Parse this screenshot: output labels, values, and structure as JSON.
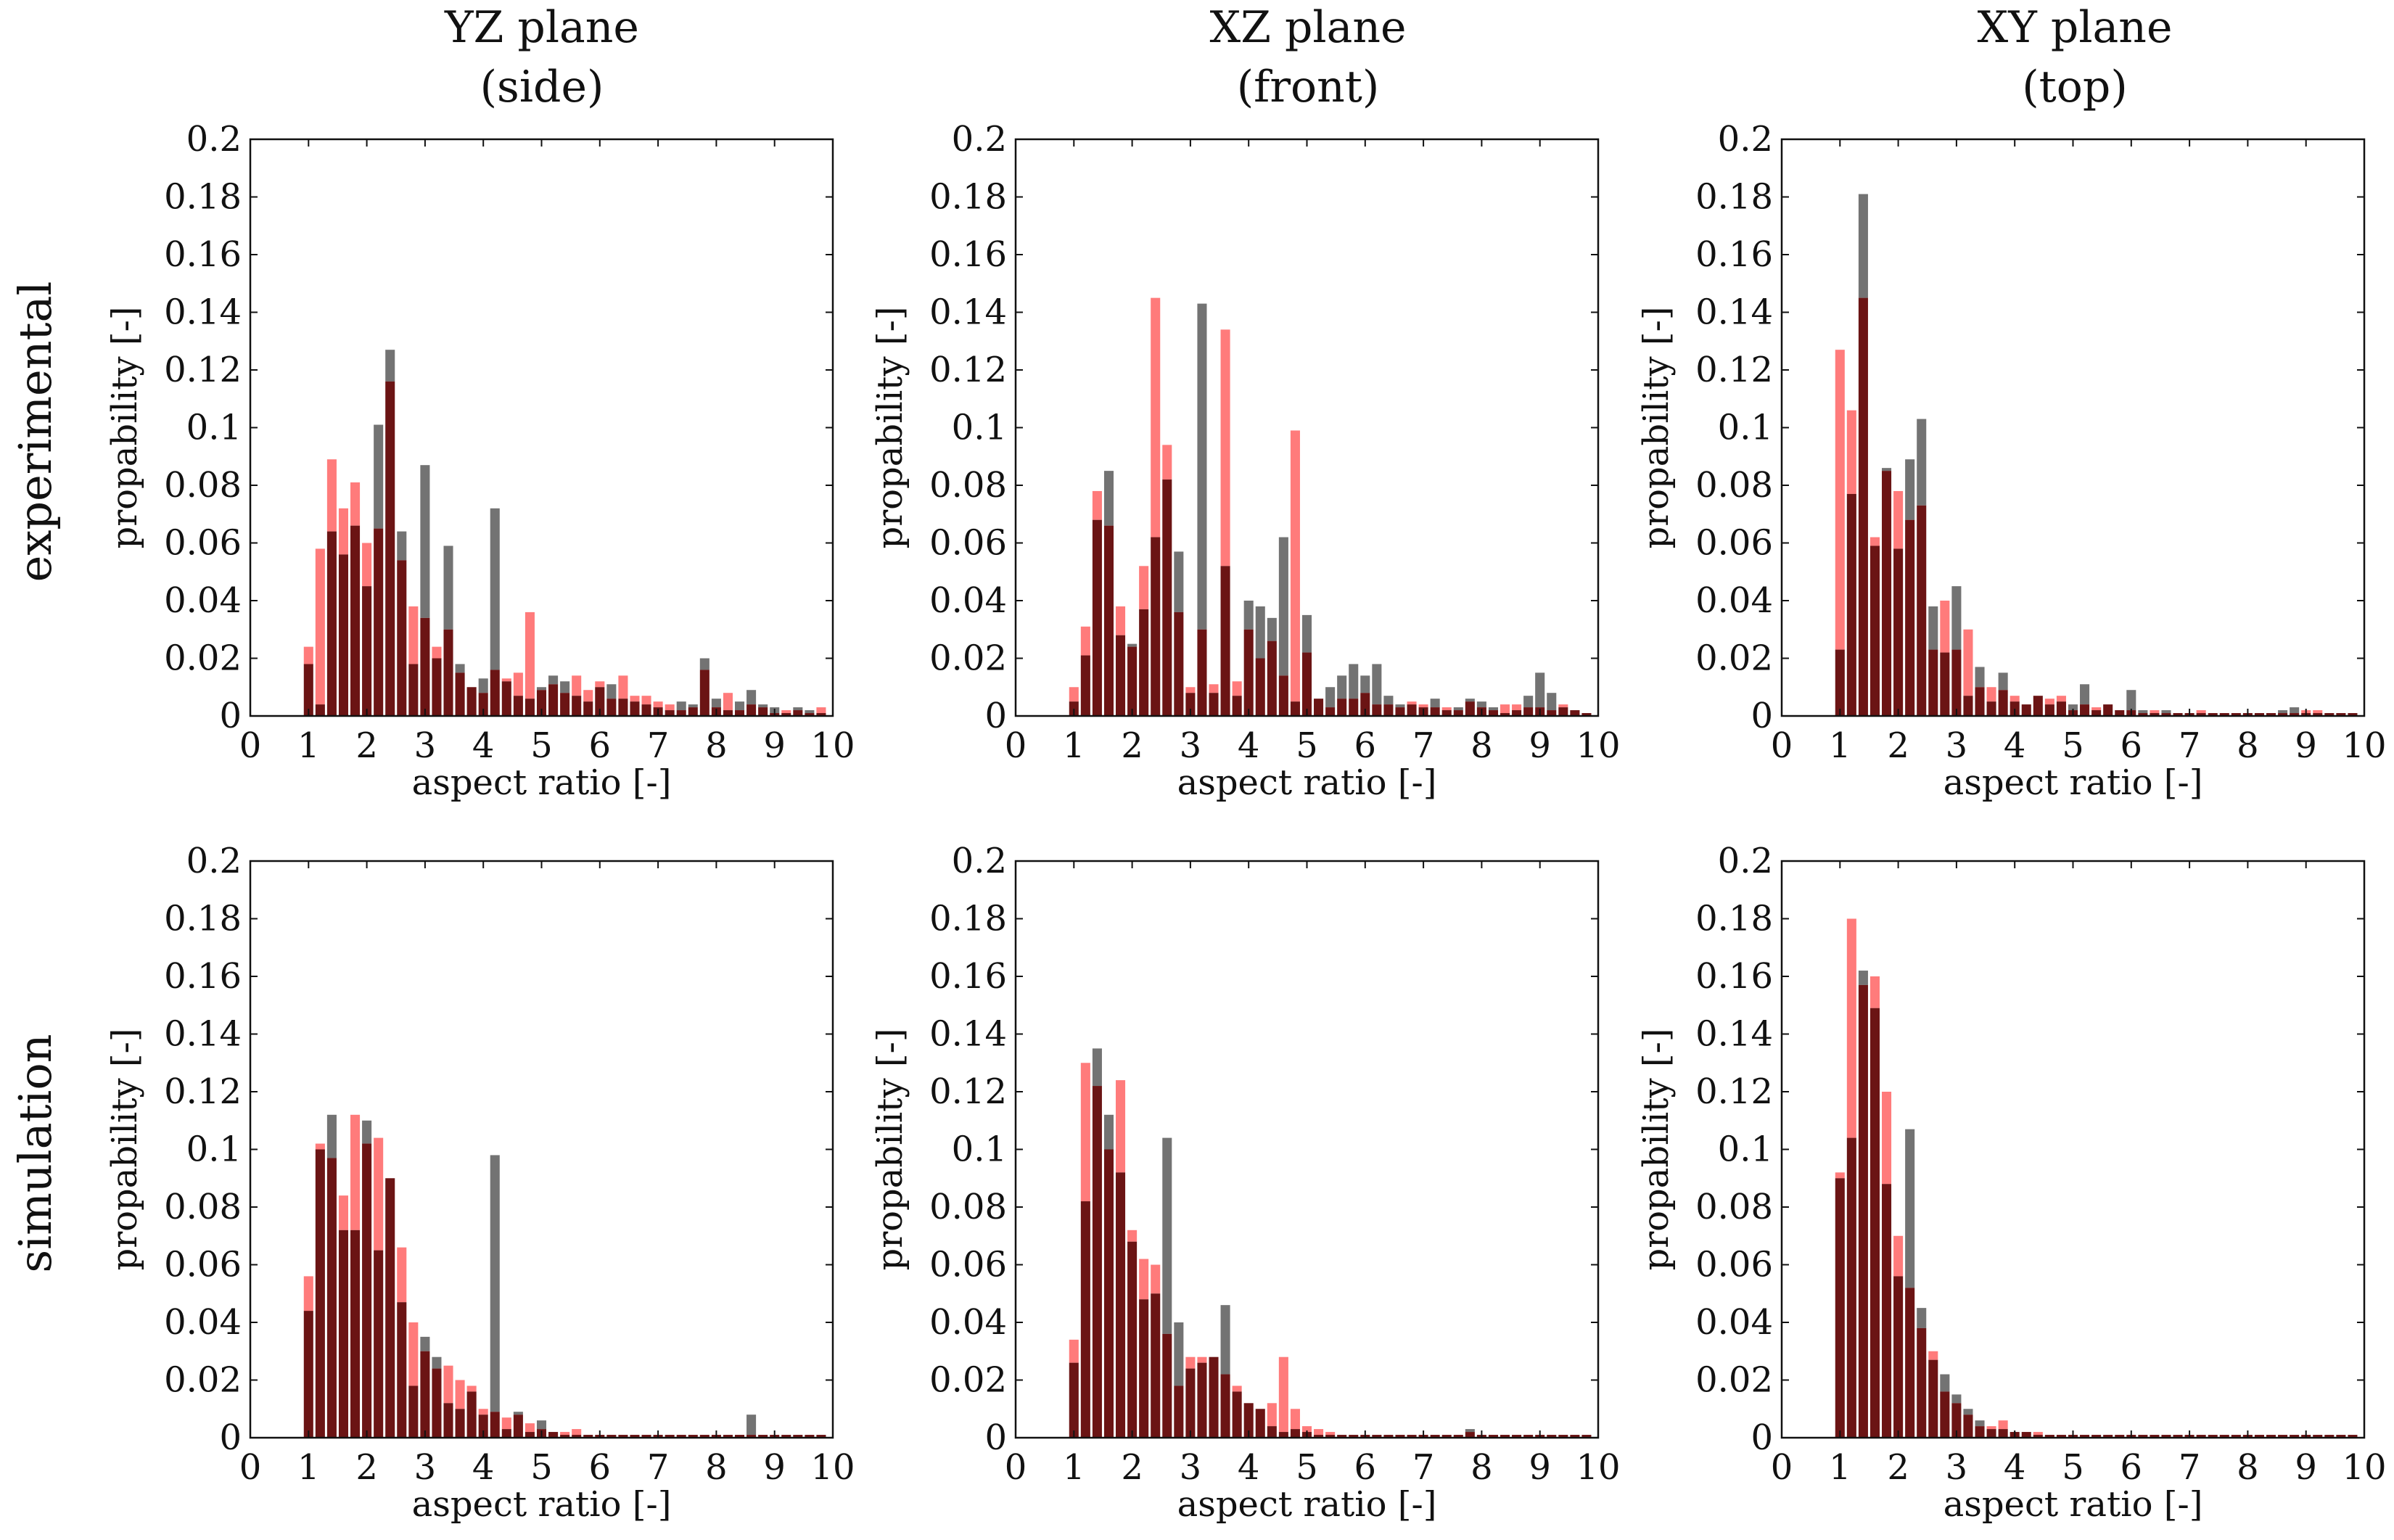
{
  "figure": {
    "column_titles": [
      {
        "line1": "YZ plane",
        "line2": "(side)"
      },
      {
        "line1": "XZ plane",
        "line2": "(front)"
      },
      {
        "line1": "XY plane",
        "line2": "(top)"
      }
    ],
    "row_labels": [
      "experimental",
      "simulation"
    ],
    "colors": {
      "series_a": "#ff5a5a",
      "series_b": "#505050",
      "overlap": "#6b1414",
      "axis": "#111111"
    }
  },
  "chart_data": [
    {
      "type": "bar",
      "row": "experimental",
      "plane": "YZ plane (side)",
      "xlabel": "aspect ratio [-]",
      "ylabel": "propability [-]",
      "xlim": [
        0,
        10
      ],
      "ylim": [
        0,
        0.2
      ],
      "xticks": [
        0,
        1,
        2,
        3,
        4,
        5,
        6,
        7,
        8,
        9,
        10
      ],
      "yticks": [
        0,
        0.02,
        0.04,
        0.06,
        0.08,
        0.1,
        0.12,
        0.14,
        0.16,
        0.18,
        0.2
      ],
      "bin_start": 0.9,
      "bin_width": 0.2,
      "series": [
        {
          "name": "red",
          "values": [
            0.024,
            0.058,
            0.089,
            0.072,
            0.081,
            0.06,
            0.065,
            0.116,
            0.054,
            0.038,
            0.034,
            0.024,
            0.03,
            0.015,
            0.01,
            0.008,
            0.016,
            0.013,
            0.015,
            0.036,
            0.009,
            0.011,
            0.008,
            0.014,
            0.009,
            0.012,
            0.006,
            0.014,
            0.007,
            0.007,
            0.005,
            0.004,
            0.002,
            0.003,
            0.016,
            0.003,
            0.008,
            0.002,
            0.004,
            0.003,
            0.001,
            0.002,
            0.002,
            0.001,
            0.003
          ]
        },
        {
          "name": "gray",
          "values": [
            0.018,
            0.004,
            0.064,
            0.056,
            0.066,
            0.045,
            0.101,
            0.127,
            0.064,
            0.018,
            0.087,
            0.02,
            0.059,
            0.018,
            0.01,
            0.013,
            0.072,
            0.012,
            0.007,
            0.006,
            0.01,
            0.014,
            0.012,
            0.007,
            0.005,
            0.01,
            0.011,
            0.006,
            0.005,
            0.004,
            0.003,
            0.002,
            0.005,
            0.004,
            0.02,
            0.006,
            0.002,
            0.005,
            0.009,
            0.004,
            0.003,
            0.001,
            0.003,
            0.002,
            0.001
          ]
        }
      ]
    },
    {
      "type": "bar",
      "row": "experimental",
      "plane": "XZ plane (front)",
      "xlabel": "aspect ratio [-]",
      "ylabel": "propability [-]",
      "xlim": [
        0,
        10
      ],
      "ylim": [
        0,
        0.2
      ],
      "xticks": [
        0,
        1,
        2,
        3,
        4,
        5,
        6,
        7,
        8,
        9,
        10
      ],
      "yticks": [
        0,
        0.02,
        0.04,
        0.06,
        0.08,
        0.1,
        0.12,
        0.14,
        0.16,
        0.18,
        0.2
      ],
      "bin_start": 0.9,
      "bin_width": 0.2,
      "series": [
        {
          "name": "red",
          "values": [
            0.01,
            0.031,
            0.078,
            0.066,
            0.038,
            0.024,
            0.052,
            0.145,
            0.094,
            0.036,
            0.01,
            0.03,
            0.011,
            0.134,
            0.012,
            0.03,
            0.02,
            0.026,
            0.014,
            0.099,
            0.022,
            0.006,
            0.003,
            0.006,
            0.006,
            0.008,
            0.004,
            0.004,
            0.003,
            0.005,
            0.004,
            0.003,
            0.003,
            0.002,
            0.005,
            0.003,
            0.002,
            0.004,
            0.004,
            0.003,
            0.003,
            0.002,
            0.004,
            0.002,
            0.001
          ]
        },
        {
          "name": "gray",
          "values": [
            0.005,
            0.021,
            0.068,
            0.085,
            0.028,
            0.025,
            0.037,
            0.062,
            0.082,
            0.057,
            0.008,
            0.143,
            0.008,
            0.052,
            0.007,
            0.04,
            0.038,
            0.034,
            0.062,
            0.005,
            0.035,
            0.006,
            0.01,
            0.014,
            0.018,
            0.014,
            0.018,
            0.007,
            0.004,
            0.004,
            0.003,
            0.006,
            0.002,
            0.003,
            0.006,
            0.005,
            0.003,
            0.001,
            0.002,
            0.007,
            0.015,
            0.008,
            0.003,
            0.002,
            0.001
          ]
        }
      ]
    },
    {
      "type": "bar",
      "row": "experimental",
      "plane": "XY plane (top)",
      "xlabel": "aspect ratio [-]",
      "ylabel": "propability [-]",
      "xlim": [
        0,
        10
      ],
      "ylim": [
        0,
        0.2
      ],
      "xticks": [
        0,
        1,
        2,
        3,
        4,
        5,
        6,
        7,
        8,
        9,
        10
      ],
      "yticks": [
        0,
        0.02,
        0.04,
        0.06,
        0.08,
        0.1,
        0.12,
        0.14,
        0.16,
        0.18,
        0.2
      ],
      "bin_start": 0.9,
      "bin_width": 0.2,
      "series": [
        {
          "name": "red",
          "values": [
            0.127,
            0.106,
            0.145,
            0.062,
            0.085,
            0.078,
            0.068,
            0.073,
            0.023,
            0.04,
            0.023,
            0.03,
            0.01,
            0.01,
            0.009,
            0.007,
            0.004,
            0.007,
            0.006,
            0.007,
            0.002,
            0.004,
            0.003,
            0.004,
            0.002,
            0.002,
            0.001,
            0.002,
            0.001,
            0.001,
            0.001,
            0.002,
            0.001,
            0.001,
            0.001,
            0.001,
            0.001,
            0.001,
            0.001,
            0.001,
            0.002,
            0.002,
            0.001,
            0.001,
            0.001
          ]
        },
        {
          "name": "gray",
          "values": [
            0.023,
            0.077,
            0.181,
            0.059,
            0.086,
            0.058,
            0.089,
            0.103,
            0.038,
            0.022,
            0.045,
            0.007,
            0.017,
            0.005,
            0.015,
            0.005,
            0.004,
            0.007,
            0.004,
            0.005,
            0.004,
            0.011,
            0.002,
            0.004,
            0.002,
            0.009,
            0.002,
            0.001,
            0.002,
            0.001,
            0.001,
            0.001,
            0.001,
            0.001,
            0.001,
            0.001,
            0.001,
            0.001,
            0.002,
            0.003,
            0.001,
            0.001,
            0.001,
            0.001,
            0.001
          ]
        }
      ]
    },
    {
      "type": "bar",
      "row": "simulation",
      "plane": "YZ plane (side)",
      "xlabel": "aspect ratio [-]",
      "ylabel": "propability [-]",
      "xlim": [
        0,
        10
      ],
      "ylim": [
        0,
        0.2
      ],
      "xticks": [
        0,
        1,
        2,
        3,
        4,
        5,
        6,
        7,
        8,
        9,
        10
      ],
      "yticks": [
        0,
        0.02,
        0.04,
        0.06,
        0.08,
        0.1,
        0.12,
        0.14,
        0.16,
        0.18,
        0.2
      ],
      "bin_start": 0.9,
      "bin_width": 0.2,
      "series": [
        {
          "name": "red",
          "values": [
            0.056,
            0.102,
            0.097,
            0.084,
            0.112,
            0.102,
            0.104,
            0.09,
            0.066,
            0.04,
            0.03,
            0.024,
            0.025,
            0.02,
            0.018,
            0.01,
            0.009,
            0.007,
            0.008,
            0.005,
            0.003,
            0.002,
            0.002,
            0.003,
            0.001,
            0.001,
            0.001,
            0.001,
            0.001,
            0.001,
            0.001,
            0.001,
            0.001,
            0.001,
            0.001,
            0.001,
            0.001,
            0.001,
            0.001,
            0.001,
            0.001,
            0.001,
            0.001,
            0.001,
            0.001
          ]
        },
        {
          "name": "gray",
          "values": [
            0.044,
            0.1,
            0.112,
            0.072,
            0.072,
            0.11,
            0.065,
            0.09,
            0.047,
            0.018,
            0.035,
            0.028,
            0.012,
            0.01,
            0.016,
            0.008,
            0.098,
            0.003,
            0.009,
            0.002,
            0.006,
            0.002,
            0.001,
            0.001,
            0.001,
            0.001,
            0.001,
            0.001,
            0.001,
            0.001,
            0.001,
            0.001,
            0.001,
            0.001,
            0.001,
            0.001,
            0.001,
            0.001,
            0.008,
            0.001,
            0.001,
            0.001,
            0.001,
            0.001,
            0.001
          ]
        }
      ]
    },
    {
      "type": "bar",
      "row": "simulation",
      "plane": "XZ plane (front)",
      "xlabel": "aspect ratio [-]",
      "ylabel": "propability [-]",
      "xlim": [
        0,
        10
      ],
      "ylim": [
        0,
        0.2
      ],
      "xticks": [
        0,
        1,
        2,
        3,
        4,
        5,
        6,
        7,
        8,
        9,
        10
      ],
      "yticks": [
        0,
        0.02,
        0.04,
        0.06,
        0.08,
        0.1,
        0.12,
        0.14,
        0.16,
        0.18,
        0.2
      ],
      "bin_start": 0.9,
      "bin_width": 0.2,
      "series": [
        {
          "name": "red",
          "values": [
            0.034,
            0.13,
            0.122,
            0.1,
            0.124,
            0.072,
            0.062,
            0.06,
            0.036,
            0.018,
            0.028,
            0.028,
            0.028,
            0.022,
            0.018,
            0.012,
            0.01,
            0.012,
            0.028,
            0.01,
            0.004,
            0.003,
            0.002,
            0.001,
            0.001,
            0.001,
            0.001,
            0.001,
            0.001,
            0.001,
            0.001,
            0.001,
            0.001,
            0.001,
            0.002,
            0.001,
            0.001,
            0.001,
            0.001,
            0.001,
            0.001,
            0.001,
            0.001,
            0.001,
            0.001
          ]
        },
        {
          "name": "gray",
          "values": [
            0.026,
            0.082,
            0.135,
            0.112,
            0.092,
            0.068,
            0.048,
            0.05,
            0.104,
            0.04,
            0.024,
            0.026,
            0.028,
            0.046,
            0.016,
            0.012,
            0.01,
            0.004,
            0.002,
            0.003,
            0.002,
            0.001,
            0.001,
            0.001,
            0.001,
            0.001,
            0.001,
            0.001,
            0.001,
            0.001,
            0.001,
            0.001,
            0.001,
            0.001,
            0.003,
            0.001,
            0.001,
            0.001,
            0.001,
            0.001,
            0.001,
            0.001,
            0.001,
            0.001,
            0.001
          ]
        }
      ]
    },
    {
      "type": "bar",
      "row": "simulation",
      "plane": "XY plane (top)",
      "xlabel": "aspect ratio [-]",
      "ylabel": "propability [-]",
      "xlim": [
        0,
        10
      ],
      "ylim": [
        0,
        0.2
      ],
      "xticks": [
        0,
        1,
        2,
        3,
        4,
        5,
        6,
        7,
        8,
        9,
        10
      ],
      "yticks": [
        0,
        0.02,
        0.04,
        0.06,
        0.08,
        0.1,
        0.12,
        0.14,
        0.16,
        0.18,
        0.2
      ],
      "bin_start": 0.9,
      "bin_width": 0.2,
      "series": [
        {
          "name": "red",
          "values": [
            0.092,
            0.18,
            0.157,
            0.16,
            0.12,
            0.07,
            0.052,
            0.038,
            0.03,
            0.016,
            0.012,
            0.008,
            0.004,
            0.004,
            0.006,
            0.002,
            0.002,
            0.002,
            0.001,
            0.001,
            0.001,
            0.001,
            0.001,
            0.001,
            0.001,
            0.001,
            0.001,
            0.001,
            0.001,
            0.001,
            0.001,
            0.001,
            0.001,
            0.001,
            0.001,
            0.001,
            0.001,
            0.001,
            0.001,
            0.001,
            0.001,
            0.001,
            0.001,
            0.001,
            0.001
          ]
        },
        {
          "name": "gray",
          "values": [
            0.09,
            0.104,
            0.162,
            0.149,
            0.088,
            0.056,
            0.107,
            0.045,
            0.027,
            0.022,
            0.015,
            0.01,
            0.006,
            0.003,
            0.003,
            0.002,
            0.002,
            0.001,
            0.001,
            0.001,
            0.001,
            0.001,
            0.001,
            0.001,
            0.001,
            0.001,
            0.001,
            0.001,
            0.001,
            0.001,
            0.001,
            0.001,
            0.001,
            0.001,
            0.001,
            0.001,
            0.001,
            0.001,
            0.001,
            0.001,
            0.001,
            0.001,
            0.001,
            0.001,
            0.001
          ]
        }
      ]
    }
  ]
}
